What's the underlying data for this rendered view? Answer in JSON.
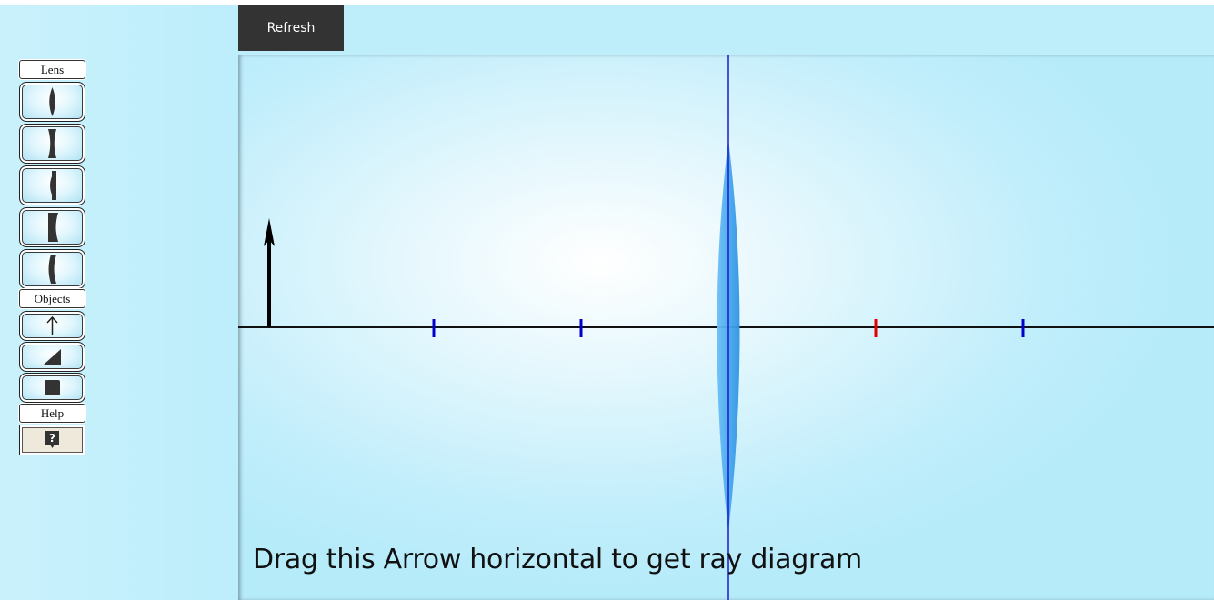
{
  "toolbar": {
    "refresh_label": "Refresh"
  },
  "sidebar": {
    "lens_label": "Lens",
    "objects_label": "Objects",
    "help_label": "Help",
    "lens_tools": [
      {
        "icon": "biconvex-lens-icon"
      },
      {
        "icon": "biconcave-lens-icon"
      },
      {
        "icon": "plano-convex-lens-icon"
      },
      {
        "icon": "plano-concave-lens-icon"
      },
      {
        "icon": "meniscus-lens-icon"
      }
    ],
    "object_tools": [
      {
        "icon": "arrow-up-icon"
      },
      {
        "icon": "triangle-icon"
      },
      {
        "icon": "square-icon"
      }
    ],
    "help_tool": {
      "icon": "question-icon"
    }
  },
  "canvas": {
    "instruction": "Drag this Arrow horizontal to get ray diagram",
    "colors": {
      "lens": "#4aa9ee",
      "axis": "#111111",
      "focal_marker": "#0000cc",
      "highlight_marker": "#e00000",
      "optical_center_line": "#1a1acc"
    }
  }
}
